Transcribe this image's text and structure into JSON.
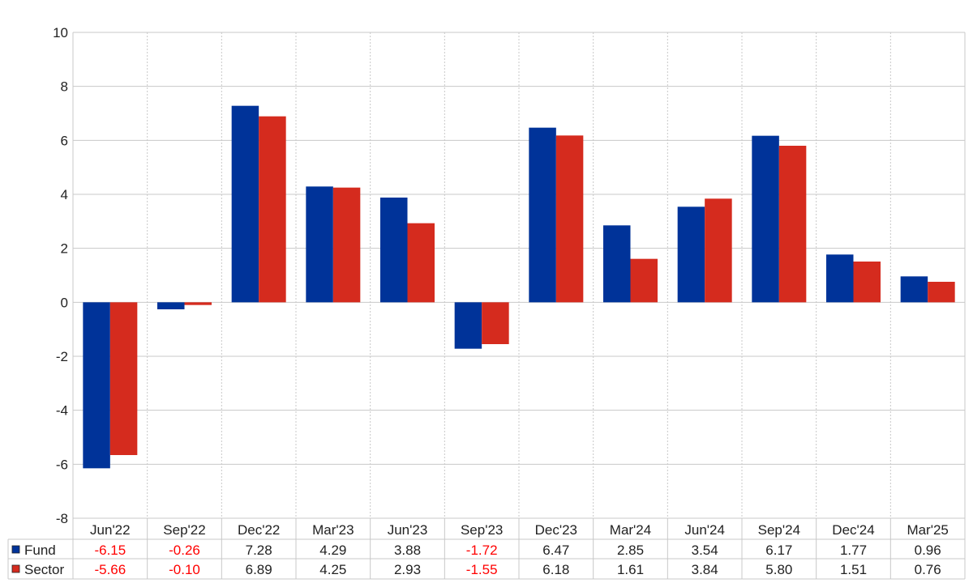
{
  "chart_data": {
    "type": "bar",
    "categories": [
      "Jun'22",
      "Sep'22",
      "Dec'22",
      "Mar'23",
      "Jun'23",
      "Sep'23",
      "Dec'23",
      "Mar'24",
      "Jun'24",
      "Sep'24",
      "Dec'24",
      "Mar'25"
    ],
    "series": [
      {
        "name": "Fund",
        "color": "#003399",
        "values": [
          -6.15,
          -0.26,
          7.28,
          4.29,
          3.88,
          -1.72,
          6.47,
          2.85,
          3.54,
          6.17,
          1.77,
          0.96
        ],
        "labels": [
          "-6.15",
          "-0.26",
          "7.28",
          "4.29",
          "3.88",
          "-1.72",
          "6.47",
          "2.85",
          "3.54",
          "6.17",
          "1.77",
          "0.96"
        ]
      },
      {
        "name": "Sector",
        "color": "#d52b1e",
        "values": [
          -5.66,
          -0.1,
          6.89,
          4.25,
          2.93,
          -1.55,
          6.18,
          1.61,
          3.84,
          5.8,
          1.51,
          0.76
        ],
        "labels": [
          "-5.66",
          "-0.10",
          "6.89",
          "4.25",
          "2.93",
          "-1.55",
          "6.18",
          "1.61",
          "3.84",
          "5.80",
          "1.51",
          "0.76"
        ]
      }
    ],
    "yticks": [
      "10",
      "8",
      "6",
      "4",
      "2",
      "0",
      "-2",
      "-4",
      "-6",
      "-8"
    ],
    "ylim": [
      -8,
      10
    ],
    "grid": true,
    "legend": "table-bottom",
    "colors": {
      "negative_text": "#ff0000",
      "positive_text": "#222222",
      "grid": "#c8c8c8"
    }
  }
}
